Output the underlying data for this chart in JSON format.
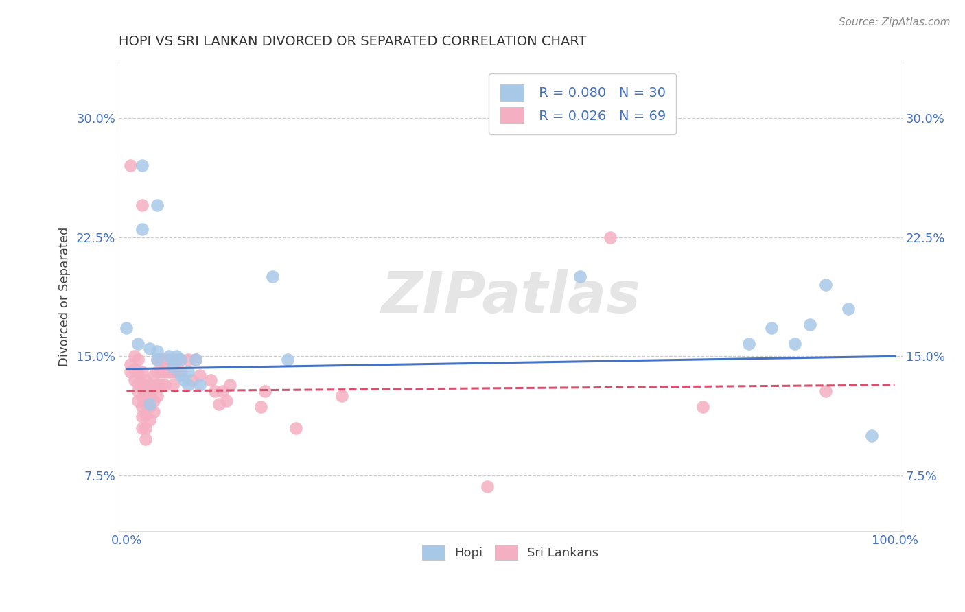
{
  "title": "HOPI VS SRI LANKAN DIVORCED OR SEPARATED CORRELATION CHART",
  "source": "Source: ZipAtlas.com",
  "ylabel": "Divorced or Separated",
  "xlim": [
    -0.01,
    1.01
  ],
  "ylim": [
    0.04,
    0.335
  ],
  "yticks": [
    0.075,
    0.15,
    0.225,
    0.3
  ],
  "ytick_labels": [
    "7.5%",
    "15.0%",
    "22.5%",
    "30.0%"
  ],
  "xtick_labels": [
    "0.0%",
    "100.0%"
  ],
  "legend_r1": "R = 0.080",
  "legend_n1": "N = 30",
  "legend_r2": "R = 0.026",
  "legend_n2": "N = 69",
  "hopi_color": "#a8c8e8",
  "sri_color": "#f5afc2",
  "hopi_line_color": "#4472c4",
  "sri_line_color": "#d94f6e",
  "watermark": "ZIPatlas",
  "hopi_points": [
    [
      0.02,
      0.27
    ],
    [
      0.04,
      0.245
    ],
    [
      0.02,
      0.23
    ],
    [
      0.0,
      0.168
    ],
    [
      0.015,
      0.158
    ],
    [
      0.03,
      0.155
    ],
    [
      0.04,
      0.153
    ],
    [
      0.04,
      0.148
    ],
    [
      0.055,
      0.15
    ],
    [
      0.06,
      0.148
    ],
    [
      0.06,
      0.143
    ],
    [
      0.065,
      0.15
    ],
    [
      0.07,
      0.148
    ],
    [
      0.07,
      0.138
    ],
    [
      0.075,
      0.135
    ],
    [
      0.08,
      0.14
    ],
    [
      0.08,
      0.132
    ],
    [
      0.09,
      0.148
    ],
    [
      0.095,
      0.132
    ],
    [
      0.19,
      0.2
    ],
    [
      0.21,
      0.148
    ],
    [
      0.03,
      0.12
    ],
    [
      0.59,
      0.2
    ],
    [
      0.81,
      0.158
    ],
    [
      0.84,
      0.168
    ],
    [
      0.87,
      0.158
    ],
    [
      0.89,
      0.17
    ],
    [
      0.91,
      0.195
    ],
    [
      0.94,
      0.18
    ],
    [
      0.97,
      0.1
    ]
  ],
  "sri_points": [
    [
      0.005,
      0.27
    ],
    [
      0.02,
      0.245
    ],
    [
      0.005,
      0.145
    ],
    [
      0.005,
      0.14
    ],
    [
      0.01,
      0.15
    ],
    [
      0.01,
      0.142
    ],
    [
      0.01,
      0.135
    ],
    [
      0.015,
      0.148
    ],
    [
      0.015,
      0.14
    ],
    [
      0.015,
      0.133
    ],
    [
      0.015,
      0.128
    ],
    [
      0.015,
      0.122
    ],
    [
      0.02,
      0.14
    ],
    [
      0.02,
      0.133
    ],
    [
      0.02,
      0.125
    ],
    [
      0.02,
      0.118
    ],
    [
      0.02,
      0.112
    ],
    [
      0.02,
      0.105
    ],
    [
      0.025,
      0.135
    ],
    [
      0.025,
      0.128
    ],
    [
      0.025,
      0.12
    ],
    [
      0.025,
      0.113
    ],
    [
      0.025,
      0.105
    ],
    [
      0.025,
      0.098
    ],
    [
      0.03,
      0.132
    ],
    [
      0.03,
      0.125
    ],
    [
      0.03,
      0.118
    ],
    [
      0.03,
      0.11
    ],
    [
      0.035,
      0.138
    ],
    [
      0.035,
      0.13
    ],
    [
      0.035,
      0.122
    ],
    [
      0.035,
      0.115
    ],
    [
      0.04,
      0.148
    ],
    [
      0.04,
      0.14
    ],
    [
      0.04,
      0.132
    ],
    [
      0.04,
      0.125
    ],
    [
      0.045,
      0.148
    ],
    [
      0.045,
      0.14
    ],
    [
      0.045,
      0.132
    ],
    [
      0.05,
      0.148
    ],
    [
      0.05,
      0.14
    ],
    [
      0.05,
      0.132
    ],
    [
      0.055,
      0.148
    ],
    [
      0.055,
      0.14
    ],
    [
      0.06,
      0.148
    ],
    [
      0.06,
      0.14
    ],
    [
      0.06,
      0.132
    ],
    [
      0.065,
      0.148
    ],
    [
      0.065,
      0.14
    ],
    [
      0.07,
      0.148
    ],
    [
      0.07,
      0.14
    ],
    [
      0.08,
      0.148
    ],
    [
      0.085,
      0.135
    ],
    [
      0.09,
      0.148
    ],
    [
      0.095,
      0.138
    ],
    [
      0.11,
      0.135
    ],
    [
      0.115,
      0.128
    ],
    [
      0.12,
      0.12
    ],
    [
      0.125,
      0.128
    ],
    [
      0.13,
      0.122
    ],
    [
      0.135,
      0.132
    ],
    [
      0.175,
      0.118
    ],
    [
      0.18,
      0.128
    ],
    [
      0.22,
      0.105
    ],
    [
      0.28,
      0.125
    ],
    [
      0.47,
      0.068
    ],
    [
      0.63,
      0.225
    ],
    [
      0.75,
      0.118
    ],
    [
      0.91,
      0.128
    ]
  ]
}
